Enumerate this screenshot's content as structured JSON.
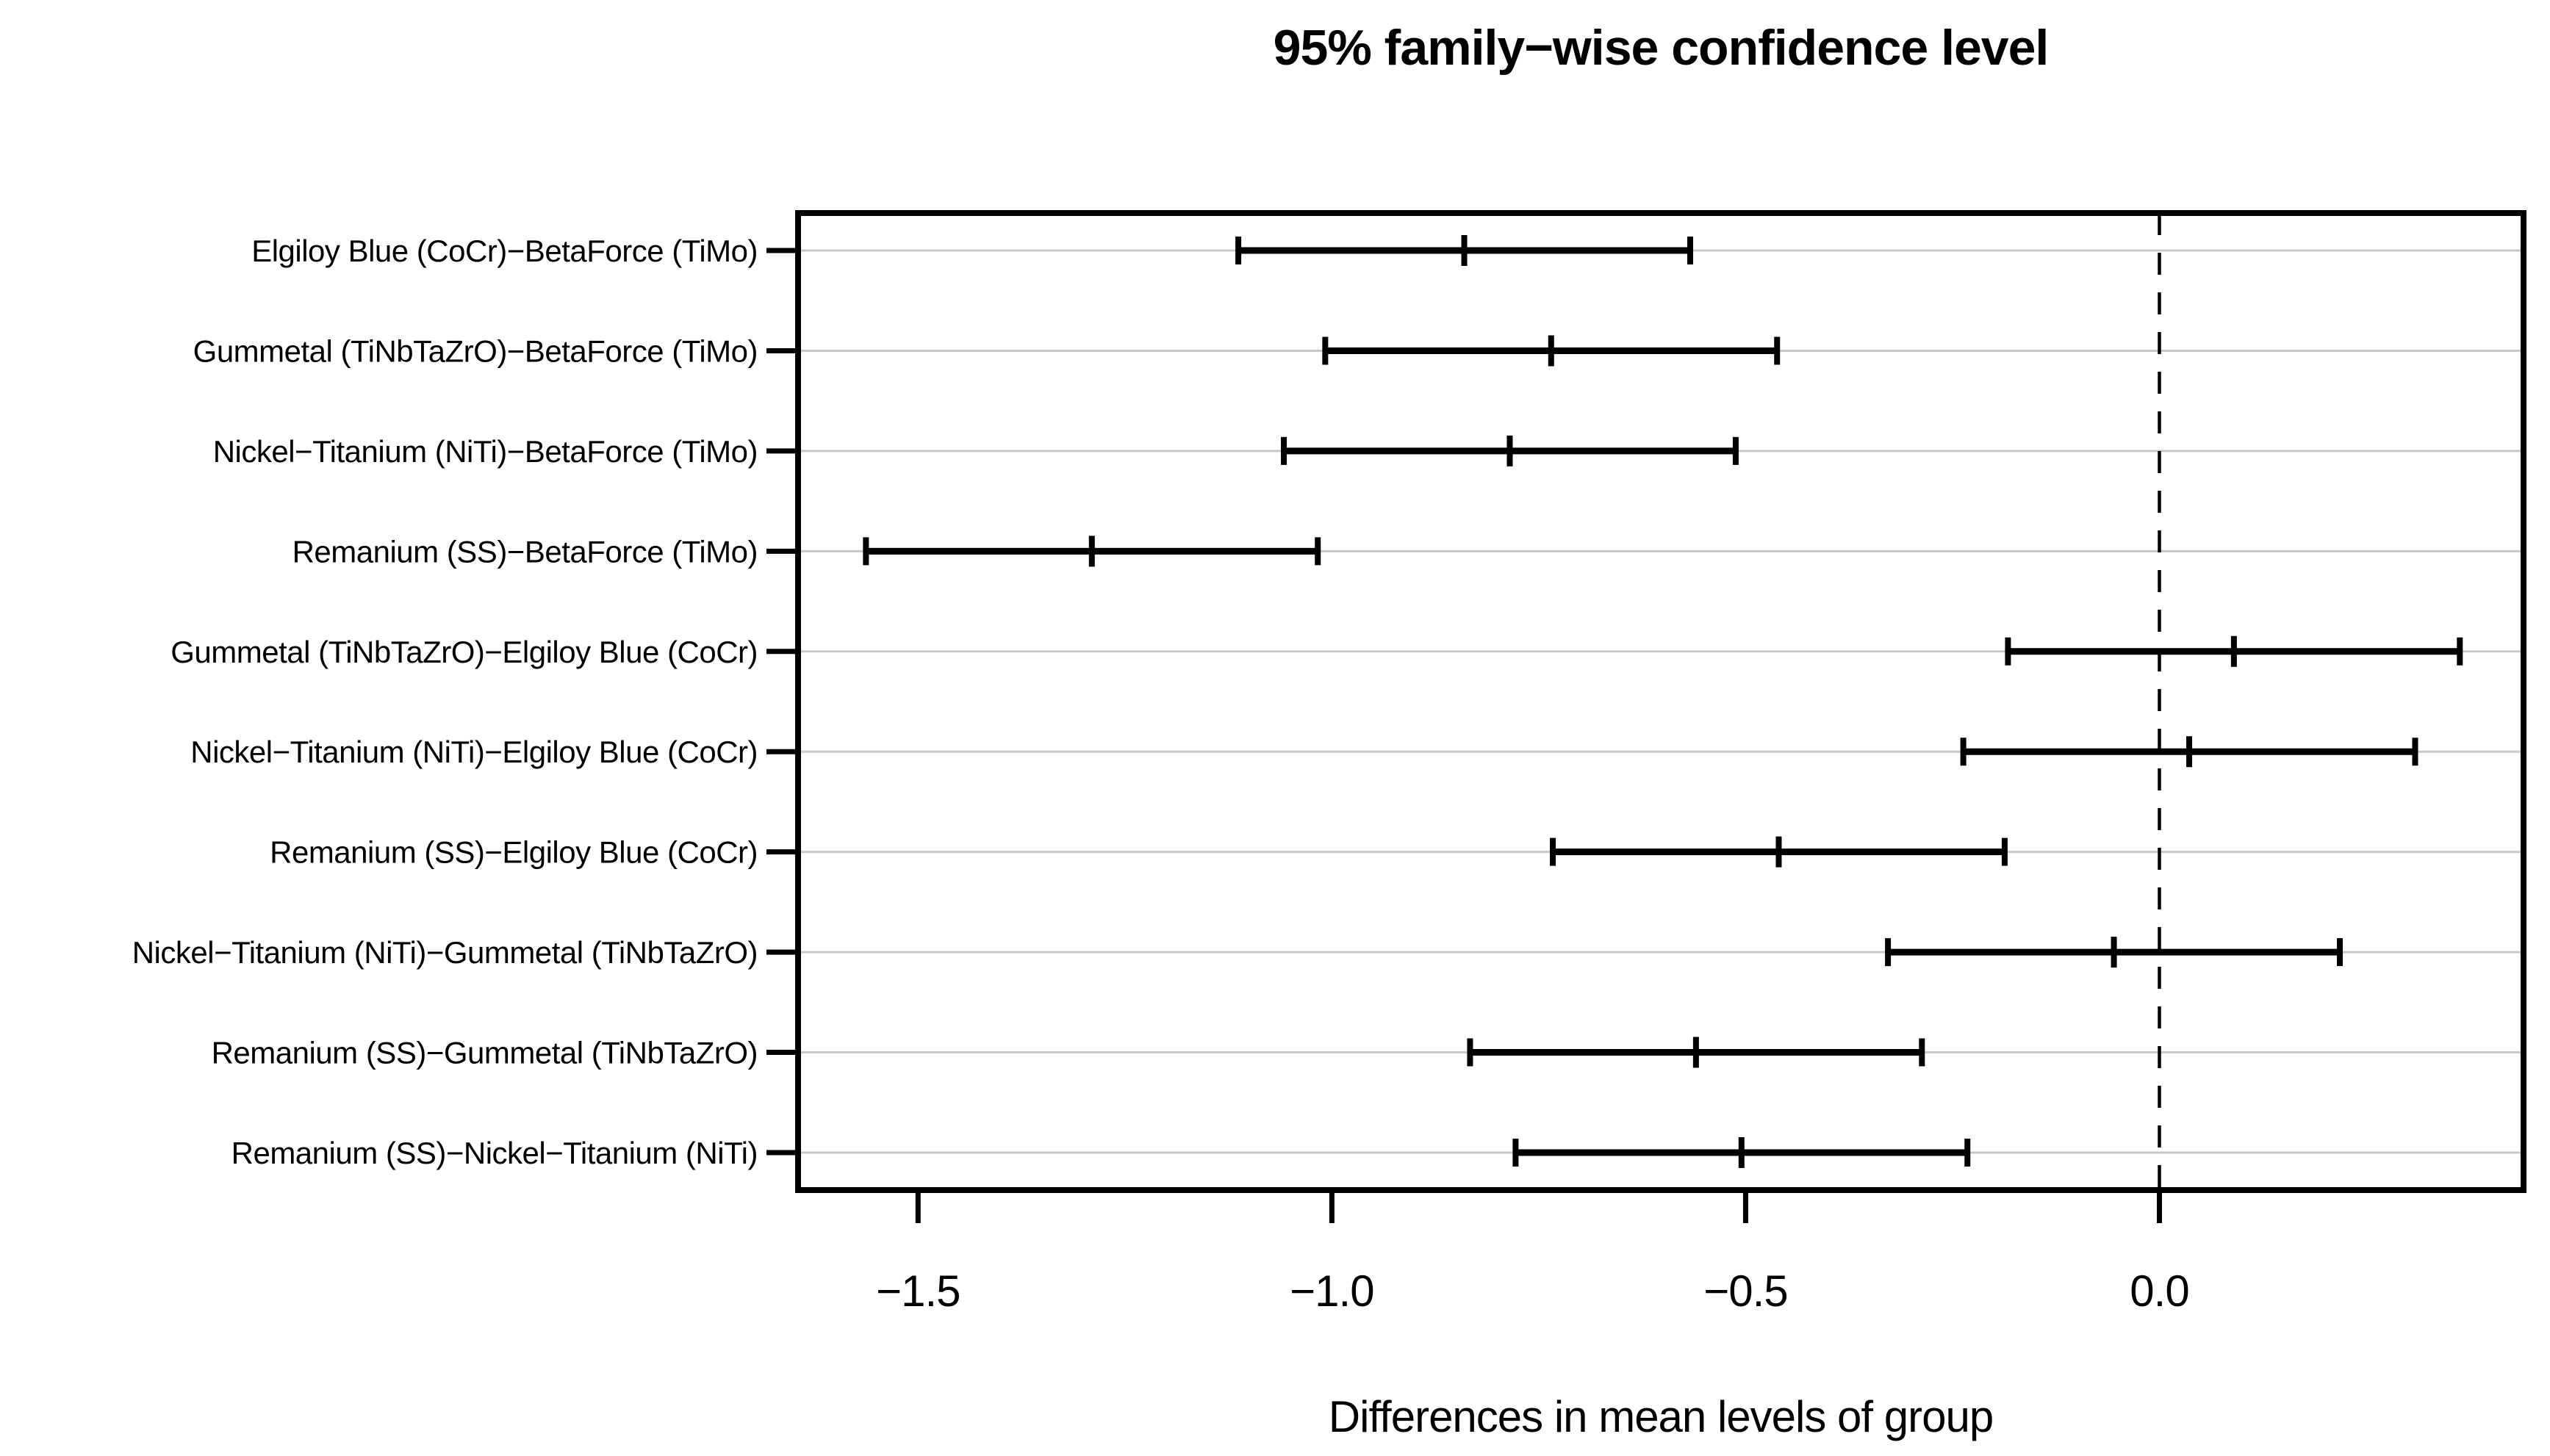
{
  "chart_data": {
    "type": "interval",
    "title": "95% family−wise confidence level",
    "xlabel": "Differences in mean levels of group",
    "xlim": [
      -1.645,
      0.44
    ],
    "grid": true,
    "zero_reference_line": 0.0,
    "x_ticks": [
      {
        "value": -1.5,
        "label": "−1.5"
      },
      {
        "value": -1.0,
        "label": "−1.0"
      },
      {
        "value": -0.5,
        "label": "−0.5"
      },
      {
        "value": 0.0,
        "label": "0.0"
      }
    ],
    "comparisons": [
      {
        "label": "Elgiloy Blue (CoCr)−BetaForce (TiMo)",
        "lower": -1.113,
        "diff": -0.84,
        "upper": -0.567
      },
      {
        "label": "Gummetal (TiNbTaZrO)−BetaForce (TiMo)",
        "lower": -1.008,
        "diff": -0.735,
        "upper": -0.462
      },
      {
        "label": "Nickel−Titanium (NiTi)−BetaForce (TiMo)",
        "lower": -1.058,
        "diff": -0.785,
        "upper": -0.512
      },
      {
        "label": "Remanium (SS)−BetaForce (TiMo)",
        "lower": -1.563,
        "diff": -1.29,
        "upper": -1.017
      },
      {
        "label": "Gummetal (TiNbTaZrO)−Elgiloy Blue (CoCr)",
        "lower": -0.183,
        "diff": 0.09,
        "upper": 0.363
      },
      {
        "label": "Nickel−Titanium (NiTi)−Elgiloy Blue (CoCr)",
        "lower": -0.237,
        "diff": 0.036,
        "upper": 0.309
      },
      {
        "label": "Remanium (SS)−Elgiloy Blue (CoCr)",
        "lower": -0.733,
        "diff": -0.46,
        "upper": -0.187
      },
      {
        "label": "Nickel−Titanium (NiTi)−Gummetal (TiNbTaZrO)",
        "lower": -0.328,
        "diff": -0.055,
        "upper": 0.218
      },
      {
        "label": "Remanium (SS)−Gummetal (TiNbTaZrO)",
        "lower": -0.833,
        "diff": -0.56,
        "upper": -0.287
      },
      {
        "label": "Remanium (SS)−Nickel−Titanium (NiTi)",
        "lower": -0.778,
        "diff": -0.505,
        "upper": -0.232
      }
    ],
    "colors": {
      "interval": "#000000",
      "frame": "#000000",
      "grid": "#c8c8c8",
      "background": "#ffffff"
    }
  }
}
